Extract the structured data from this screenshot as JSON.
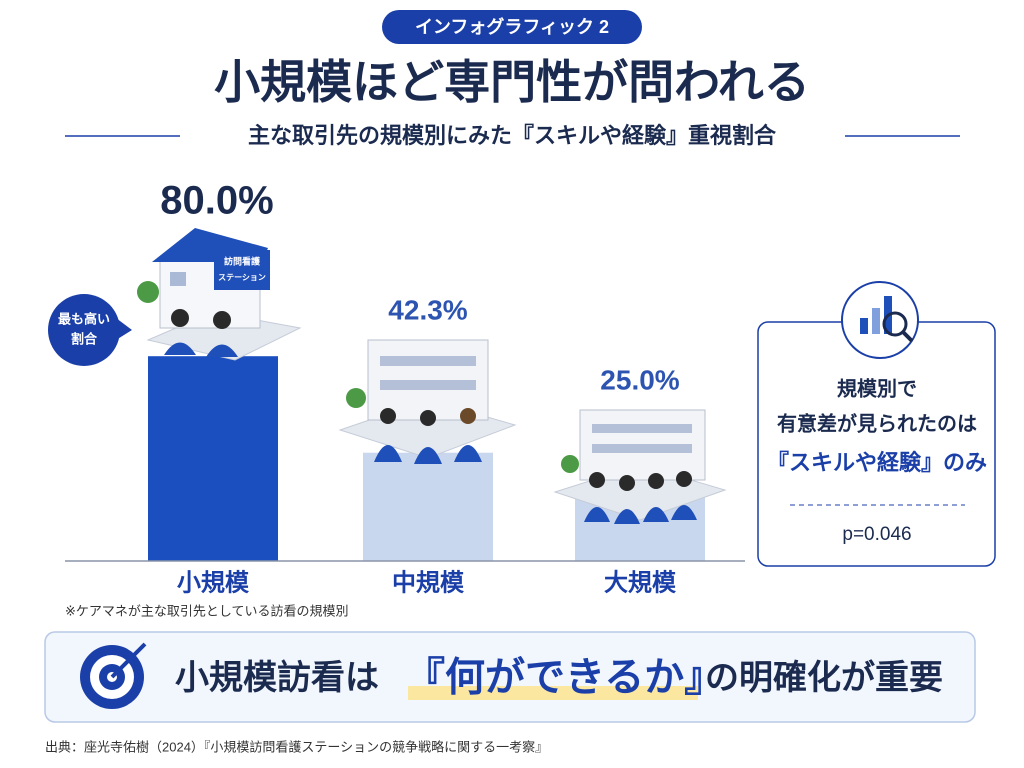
{
  "badge": "インフォグラフィック 2",
  "chart_data": {
    "type": "bar",
    "title": "小規模ほど専門性が問われる",
    "subtitle": "主な取引先の規模別にみた『スキルや経験』重視割合",
    "categories": [
      "小規模",
      "中規模",
      "大規模"
    ],
    "values": [
      80.0,
      42.3,
      25.0
    ],
    "value_labels": [
      "80.0%",
      "42.3%",
      "25.0%"
    ],
    "colors": [
      "#1b4fbf",
      "#c9d7ee",
      "#c9d7ee"
    ],
    "note": "※ケアマネが主な取引先としている訪看の規模別"
  },
  "callout": [
    "最も高い",
    "割合"
  ],
  "illustration_sign": [
    "訪問看護",
    "ステーション"
  ],
  "side_box": {
    "lines": [
      "規模別で",
      "有意差が見られたのは"
    ],
    "highlight": "『スキルや経験』のみ",
    "p_value": "p=0.046"
  },
  "conclusion": {
    "before": "小規模訪看は",
    "highlight": "『何ができるか』",
    "after": "の明確化が重要"
  },
  "source": "出典：座光寺佑樹（2024）『小規模訪問看護ステーションの競争戦略に関する一考察』"
}
